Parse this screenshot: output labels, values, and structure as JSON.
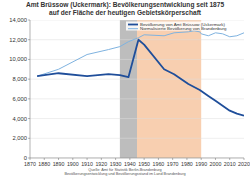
{
  "chart_data": {
    "type": "line",
    "title": "Amt Brüssow (Uckermark): Bevölkerungsentwicklung seit 1875",
    "subtitle": "auf der Fläche der heutigen Gebietskörperschaft",
    "x": [
      1875,
      1890,
      1910,
      1925,
      1933,
      1939,
      1946,
      1950,
      1964,
      1971,
      1981,
      1985,
      1989,
      1990,
      1995,
      2000,
      2005,
      2010,
      2015,
      2020
    ],
    "series": [
      {
        "name": "Bevölkerung von Amt Brüssow (Uckermark)",
        "color": "#1f4e9a",
        "values": [
          8300,
          8600,
          8300,
          8500,
          8400,
          8200,
          12000,
          11500,
          9000,
          8500,
          7500,
          7200,
          6900,
          6800,
          6300,
          5800,
          5300,
          4800,
          4500,
          4300
        ]
      },
      {
        "name": "Normalisierte Bevölkerung von Brandenburg",
        "color": "#7fb3e0",
        "values": [
          8300,
          9000,
          10500,
          11000,
          11300,
          11800,
          12200,
          12500,
          12400,
          12700,
          12800,
          12900,
          12800,
          12600,
          12400,
          12700,
          12600,
          12300,
          12400,
          12700
        ]
      }
    ],
    "bands": [
      {
        "from": 1933,
        "to": 1945,
        "color": "#bdbdbd"
      },
      {
        "from": 1945,
        "to": 1990,
        "color": "#f8cfb0"
      }
    ],
    "xlim": [
      1870,
      2020
    ],
    "xticks": [
      1870,
      1880,
      1890,
      1900,
      1910,
      1920,
      1930,
      1940,
      1950,
      1960,
      1970,
      1980,
      1990,
      2000,
      2010,
      2020
    ],
    "ylim": [
      0,
      14000
    ],
    "yticks": [
      0,
      {
        "value": 2000,
        "label": "2,000"
      },
      {
        "value": 4000,
        "label": "4,000"
      },
      {
        "value": 6000,
        "label": "6,000"
      },
      {
        "value": 8000,
        "label": "8,000"
      },
      {
        "value": 10000,
        "label": "10,000"
      },
      {
        "value": 12000,
        "label": "12,000"
      },
      {
        "value": 14000,
        "label": "14,000"
      }
    ],
    "grid": true,
    "legend": "top-right",
    "source": [
      "Quelle: Amt für Statistik Berlin-Brandenburg",
      "Bevölkerungsentwicklung und Bevölkerungsstand im Land Brandenburg"
    ]
  }
}
